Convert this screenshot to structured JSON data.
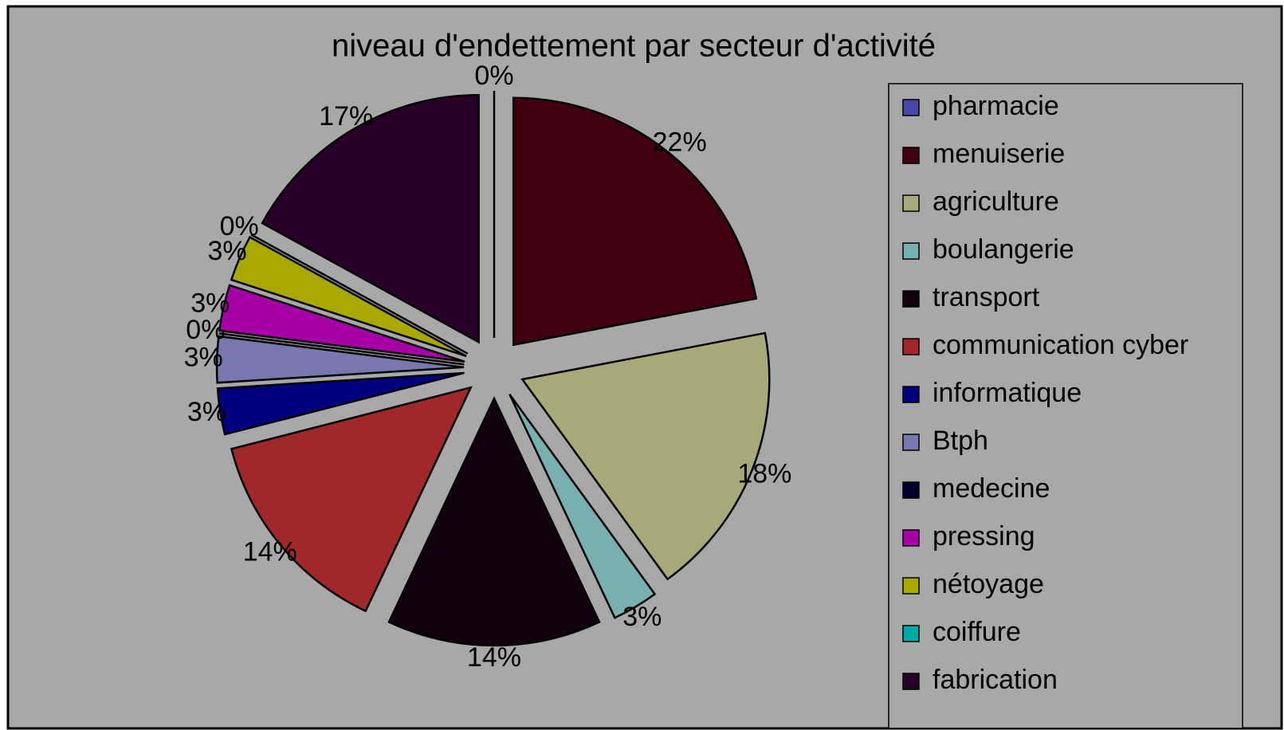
{
  "chart_data": {
    "type": "pie",
    "title": "niveau d'endettement par secteur d'activité",
    "categories": [
      "pharmacie",
      "menuiserie",
      "agriculture",
      "boulangerie",
      "transport",
      "communication cyber",
      "informatique",
      "Btph",
      "medecine",
      "pressing",
      "nétoyage",
      "coiffure",
      "fabrication"
    ],
    "values": [
      0,
      22,
      18,
      3,
      14,
      14,
      3,
      3,
      0,
      3,
      3,
      0,
      17
    ],
    "value_labels": [
      "0%",
      "22%",
      "18%",
      "3%",
      "14%",
      "14%",
      "3%",
      "3%",
      "0%",
      "3%",
      "3%",
      "0%",
      "17%"
    ],
    "colors": [
      "#4848a8",
      "#400010",
      "#a8a878",
      "#78b0b0",
      "#100010",
      "#a02828",
      "#000080",
      "#7878b0",
      "#000030",
      "#a800a8",
      "#a8a800",
      "#00a8a8",
      "#280028"
    ],
    "legend": "right"
  }
}
